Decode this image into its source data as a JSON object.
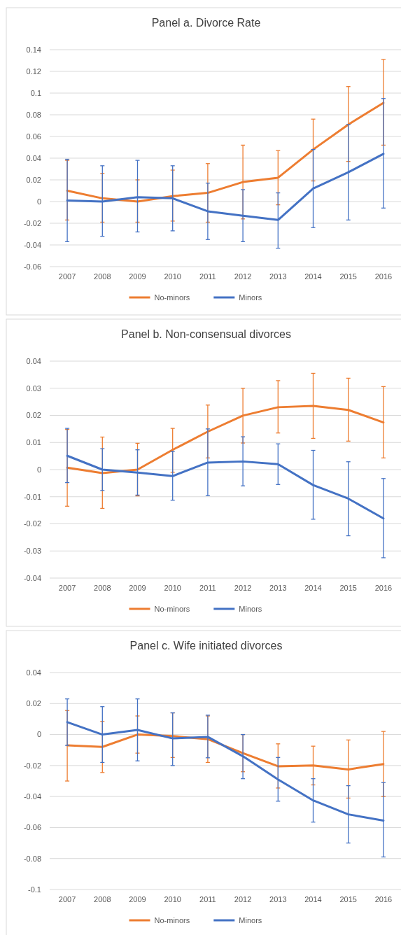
{
  "chart_data": [
    {
      "type": "line",
      "title": "Panel a. Divorce Rate",
      "categories": [
        "2007",
        "2008",
        "2009",
        "2010",
        "2011",
        "2012",
        "2013",
        "2014",
        "2015",
        "2016"
      ],
      "ylim": [
        -0.06,
        0.14
      ],
      "yticks": [
        -0.06,
        -0.04,
        -0.02,
        0,
        0.02,
        0.04,
        0.06,
        0.08,
        0.1,
        0.12,
        0.14
      ],
      "grid": "y",
      "legend": "bottom",
      "marker": "none",
      "series": [
        {
          "name": "No-minors",
          "color": "#ed7d31",
          "values": [
            0.01,
            0.003,
            0.0,
            0.005,
            0.008,
            0.018,
            0.022,
            0.048,
            0.071,
            0.091
          ],
          "errors": [
            [
              -0.017,
              0.038
            ],
            [
              -0.019,
              0.026
            ],
            [
              -0.019,
              0.02
            ],
            [
              -0.018,
              0.029
            ],
            [
              -0.019,
              0.035
            ],
            [
              -0.016,
              0.052
            ],
            [
              -0.003,
              0.047
            ],
            [
              0.019,
              0.076
            ],
            [
              0.037,
              0.106
            ],
            [
              0.052,
              0.131
            ]
          ]
        },
        {
          "name": "Minors",
          "color": "#4472c4",
          "values": [
            0.001,
            0.0,
            0.004,
            0.003,
            -0.009,
            -0.013,
            -0.017,
            0.012,
            0.027,
            0.044
          ],
          "errors": [
            [
              -0.037,
              0.039
            ],
            [
              -0.032,
              0.033
            ],
            [
              -0.028,
              0.038
            ],
            [
              -0.027,
              0.033
            ],
            [
              -0.035,
              0.017
            ],
            [
              -0.037,
              0.011
            ],
            [
              -0.043,
              0.008
            ],
            [
              -0.024,
              0.048
            ],
            [
              -0.017,
              0.071
            ],
            [
              -0.006,
              0.095
            ]
          ]
        }
      ]
    },
    {
      "type": "line",
      "title": "Panel b. Non-consensual divorces",
      "categories": [
        "2007",
        "2008",
        "2009",
        "2010",
        "2011",
        "2012",
        "2013",
        "2014",
        "2015",
        "2016"
      ],
      "ylim": [
        -0.04,
        0.04
      ],
      "yticks": [
        -0.04,
        -0.03,
        -0.02,
        -0.01,
        0,
        0.01,
        0.02,
        0.03,
        0.04
      ],
      "grid": "y",
      "legend": "bottom",
      "marker": "none",
      "series": [
        {
          "name": "No-minors",
          "color": "#ed7d31",
          "values": [
            0.0007,
            -0.0013,
            0.0,
            0.0073,
            0.014,
            0.0199,
            0.023,
            0.0235,
            0.022,
            0.0174
          ],
          "errors": [
            [
              -0.0135,
              0.0148
            ],
            [
              -0.0143,
              0.012
            ],
            [
              -0.0097,
              0.0097
            ],
            [
              -0.001,
              0.0152
            ],
            [
              0.0043,
              0.0238
            ],
            [
              0.0098,
              0.03
            ],
            [
              0.0135,
              0.0328
            ],
            [
              0.0115,
              0.0355
            ],
            [
              0.0105,
              0.0337
            ],
            [
              0.0043,
              0.0306
            ]
          ]
        },
        {
          "name": "Minors",
          "color": "#4472c4",
          "values": [
            0.0051,
            0.0,
            -0.0011,
            -0.0024,
            0.0026,
            0.003,
            0.002,
            -0.0057,
            -0.0107,
            -0.018
          ],
          "errors": [
            [
              -0.0048,
              0.0152
            ],
            [
              -0.0077,
              0.0077
            ],
            [
              -0.0094,
              0.0073
            ],
            [
              -0.0113,
              0.0067
            ],
            [
              -0.0096,
              0.015
            ],
            [
              -0.006,
              0.0121
            ],
            [
              -0.0055,
              0.0095
            ],
            [
              -0.0183,
              0.0071
            ],
            [
              -0.0244,
              0.0029
            ],
            [
              -0.0325,
              -0.0033
            ]
          ]
        }
      ]
    },
    {
      "type": "line",
      "title": "Panel c. Wife initiated divorces",
      "categories": [
        "2007",
        "2008",
        "2009",
        "2010",
        "2011",
        "2012",
        "2013",
        "2014",
        "2015",
        "2016"
      ],
      "ylim": [
        -0.1,
        0.04
      ],
      "yticks": [
        -0.1,
        -0.08,
        -0.06,
        -0.04,
        -0.02,
        0,
        0.02,
        0.04
      ],
      "grid": "y",
      "legend": "bottom",
      "marker": "none",
      "series": [
        {
          "name": "No-minors",
          "color": "#ed7d31",
          "values": [
            -0.007,
            -0.008,
            0.0,
            -0.001,
            -0.003,
            -0.012,
            -0.0205,
            -0.02,
            -0.0225,
            -0.019
          ],
          "errors": [
            [
              -0.03,
              0.0155
            ],
            [
              -0.0245,
              0.0085
            ],
            [
              -0.012,
              0.012
            ],
            [
              -0.0148,
              0.014
            ],
            [
              -0.018,
              0.012
            ],
            [
              -0.024,
              0.0
            ],
            [
              -0.0345,
              -0.006
            ],
            [
              -0.0325,
              -0.0075
            ],
            [
              -0.041,
              -0.0035
            ],
            [
              -0.04,
              0.002
            ]
          ]
        },
        {
          "name": "Minors",
          "color": "#4472c4",
          "values": [
            0.008,
            0.0,
            0.003,
            -0.0025,
            -0.0015,
            -0.014,
            -0.029,
            -0.0425,
            -0.0515,
            -0.0555
          ],
          "errors": [
            [
              -0.007,
              0.023
            ],
            [
              -0.018,
              0.018
            ],
            [
              -0.017,
              0.023
            ],
            [
              -0.02,
              0.014
            ],
            [
              -0.015,
              0.0125
            ],
            [
              -0.0285,
              0.0
            ],
            [
              -0.043,
              -0.0148
            ],
            [
              -0.0565,
              -0.0285
            ],
            [
              -0.07,
              -0.033
            ],
            [
              -0.079,
              -0.031
            ]
          ]
        }
      ]
    }
  ]
}
